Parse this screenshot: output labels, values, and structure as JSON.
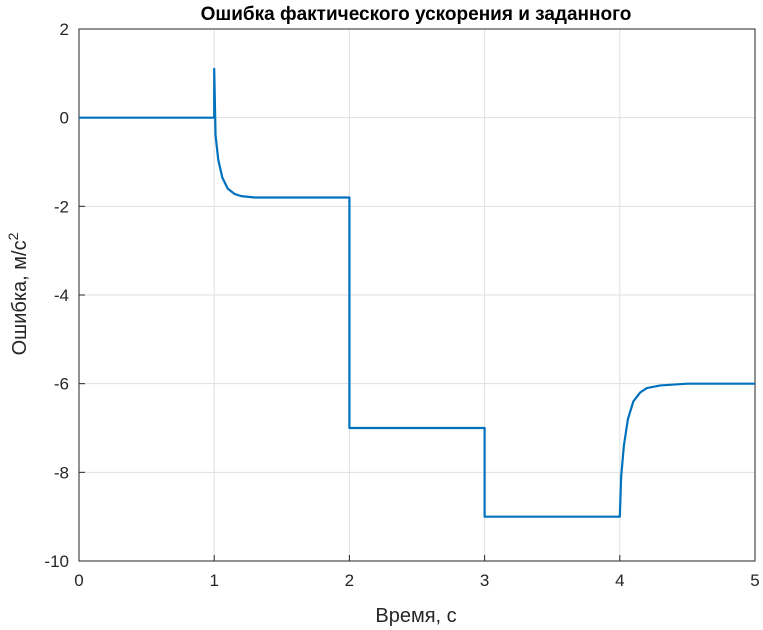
{
  "chart_data": {
    "type": "line",
    "title": "Ошибка фактического ускорения и заданного",
    "xlabel": "Время, с",
    "ylabel_base": "Ошибка, м/с",
    "ylabel_sup": "2",
    "xlim": [
      0,
      5
    ],
    "ylim": [
      -10,
      2
    ],
    "xticks": [
      0,
      1,
      2,
      3,
      4,
      5
    ],
    "yticks": [
      2,
      0,
      -2,
      -4,
      -6,
      -8,
      -10
    ],
    "xtick_labels": [
      "0",
      "1",
      "2",
      "3",
      "4",
      "5"
    ],
    "ytick_labels": [
      "2",
      "0",
      "-2",
      "-4",
      "-6",
      "-8",
      "-10"
    ],
    "grid": true,
    "series": [
      {
        "color": "#0072bd",
        "x": [
          0,
          1.0,
          1.0,
          1.01,
          1.03,
          1.06,
          1.1,
          1.15,
          1.2,
          1.3,
          1.5,
          2.0,
          2.0,
          3.0,
          3.0,
          4.0,
          4.01,
          4.03,
          4.06,
          4.1,
          4.15,
          4.2,
          4.3,
          4.5,
          5.0
        ],
        "y": [
          0,
          0,
          1.1,
          -0.4,
          -0.95,
          -1.35,
          -1.6,
          -1.72,
          -1.77,
          -1.8,
          -1.8,
          -1.8,
          -7.0,
          -7.0,
          -9.0,
          -9.0,
          -8.1,
          -7.4,
          -6.8,
          -6.4,
          -6.2,
          -6.1,
          -6.04,
          -6.0,
          -6.0
        ]
      }
    ]
  }
}
